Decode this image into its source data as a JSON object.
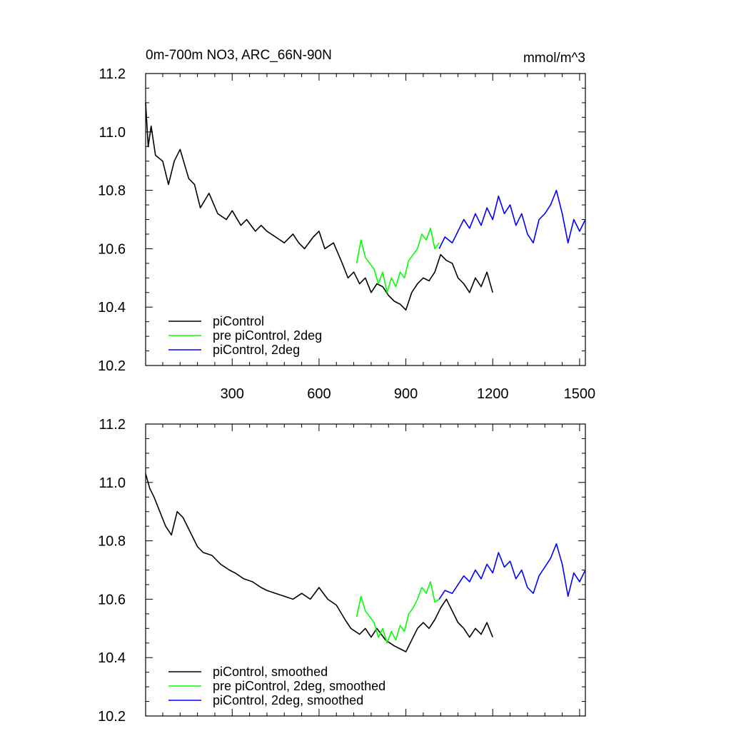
{
  "header": {
    "title": "0m-700m NO3, ARC_66N-90N",
    "units": "mmol/m^3"
  },
  "colors": {
    "piControl": "#000000",
    "pre_piControl_2deg": "#00ff00",
    "piControl_2deg": "#0000ff"
  },
  "chart_data": [
    {
      "type": "line",
      "panel": "top",
      "xlim": [
        1,
        1520
      ],
      "ylim": [
        10.2,
        11.2
      ],
      "x_ticks": [
        300,
        600,
        900,
        1200,
        1500
      ],
      "x_tick_labels": [
        "300",
        "600",
        "900",
        "1200",
        "1500"
      ],
      "y_ticks": [
        10.2,
        10.4,
        10.6,
        10.8,
        11.0,
        11.2
      ],
      "y_tick_labels": [
        "10.2",
        "10.4",
        "10.6",
        "10.8",
        "11.0",
        "11.2"
      ],
      "legend_position": "bottom-left",
      "series": [
        {
          "name": "piControl",
          "color_key": "piControl",
          "x": [
            1,
            10,
            20,
            35,
            60,
            80,
            100,
            120,
            150,
            170,
            190,
            220,
            250,
            280,
            300,
            330,
            350,
            380,
            400,
            420,
            450,
            480,
            510,
            530,
            550,
            580,
            600,
            620,
            650,
            680,
            700,
            720,
            740,
            760,
            780,
            800,
            820,
            840,
            860,
            880,
            900,
            920,
            940,
            960,
            980,
            1000,
            1020,
            1040,
            1060,
            1080,
            1100,
            1120,
            1140,
            1160,
            1180,
            1200
          ],
          "y": [
            11.1,
            10.95,
            11.02,
            10.92,
            10.9,
            10.82,
            10.9,
            10.94,
            10.84,
            10.82,
            10.74,
            10.79,
            10.72,
            10.7,
            10.73,
            10.68,
            10.7,
            10.66,
            10.68,
            10.66,
            10.64,
            10.62,
            10.65,
            10.62,
            10.6,
            10.64,
            10.66,
            10.6,
            10.62,
            10.55,
            10.5,
            10.52,
            10.48,
            10.5,
            10.45,
            10.48,
            10.47,
            10.44,
            10.42,
            10.41,
            10.39,
            10.45,
            10.48,
            10.5,
            10.49,
            10.52,
            10.58,
            10.56,
            10.55,
            10.5,
            10.48,
            10.45,
            10.5,
            10.47,
            10.52,
            10.45
          ]
        },
        {
          "name": "pre piControl, 2deg",
          "color_key": "pre_piControl_2deg",
          "x": [
            730,
            745,
            760,
            775,
            790,
            805,
            820,
            835,
            850,
            865,
            880,
            895,
            910,
            925,
            940,
            955,
            970,
            985,
            1000,
            1015
          ],
          "y": [
            10.55,
            10.63,
            10.57,
            10.55,
            10.53,
            10.48,
            10.52,
            10.45,
            10.5,
            10.47,
            10.52,
            10.5,
            10.56,
            10.58,
            10.6,
            10.65,
            10.63,
            10.67,
            10.6,
            10.62
          ]
        },
        {
          "name": "piControl, 2deg",
          "color_key": "piControl_2deg",
          "x": [
            1015,
            1035,
            1060,
            1080,
            1100,
            1120,
            1140,
            1160,
            1180,
            1200,
            1220,
            1240,
            1260,
            1280,
            1300,
            1320,
            1340,
            1360,
            1380,
            1400,
            1420,
            1440,
            1460,
            1480,
            1500,
            1520
          ],
          "y": [
            10.6,
            10.64,
            10.62,
            10.66,
            10.7,
            10.67,
            10.72,
            10.68,
            10.74,
            10.7,
            10.78,
            10.72,
            10.75,
            10.68,
            10.72,
            10.65,
            10.62,
            10.7,
            10.72,
            10.75,
            10.8,
            10.72,
            10.62,
            10.7,
            10.66,
            10.7
          ]
        }
      ]
    },
    {
      "type": "line",
      "panel": "bottom",
      "xlim": [
        1,
        1520
      ],
      "ylim": [
        10.2,
        11.2
      ],
      "x_ticks": [
        300,
        600,
        900,
        1200,
        1500
      ],
      "y_ticks": [
        10.2,
        10.4,
        10.6,
        10.8,
        11.0,
        11.2
      ],
      "y_tick_labels": [
        "10.2",
        "10.4",
        "10.6",
        "10.8",
        "11.0",
        "11.2"
      ],
      "legend_position": "bottom-left",
      "series": [
        {
          "name": "piControl, smoothed",
          "color_key": "piControl",
          "x": [
            1,
            15,
            30,
            50,
            70,
            90,
            110,
            130,
            160,
            180,
            200,
            230,
            260,
            290,
            310,
            340,
            370,
            400,
            420,
            450,
            480,
            510,
            540,
            570,
            600,
            630,
            660,
            690,
            710,
            740,
            760,
            780,
            800,
            830,
            860,
            880,
            900,
            920,
            940,
            960,
            980,
            1000,
            1020,
            1040,
            1060,
            1080,
            1100,
            1120,
            1140,
            1160,
            1180,
            1200
          ],
          "y": [
            11.03,
            10.98,
            10.95,
            10.9,
            10.85,
            10.82,
            10.9,
            10.88,
            10.82,
            10.78,
            10.76,
            10.75,
            10.72,
            10.7,
            10.69,
            10.67,
            10.66,
            10.64,
            10.63,
            10.62,
            10.61,
            10.6,
            10.62,
            10.6,
            10.64,
            10.6,
            10.58,
            10.53,
            10.5,
            10.48,
            10.5,
            10.47,
            10.5,
            10.46,
            10.44,
            10.43,
            10.42,
            10.46,
            10.5,
            10.52,
            10.5,
            10.53,
            10.57,
            10.6,
            10.56,
            10.52,
            10.5,
            10.47,
            10.5,
            10.48,
            10.52,
            10.47
          ]
        },
        {
          "name": "pre piControl, 2deg, smoothed",
          "color_key": "pre_piControl_2deg",
          "x": [
            730,
            745,
            760,
            775,
            790,
            805,
            820,
            835,
            850,
            865,
            880,
            895,
            910,
            925,
            940,
            955,
            970,
            985,
            1000,
            1015
          ],
          "y": [
            10.54,
            10.61,
            10.56,
            10.54,
            10.52,
            10.47,
            10.5,
            10.45,
            10.49,
            10.46,
            10.51,
            10.49,
            10.55,
            10.57,
            10.6,
            10.64,
            10.62,
            10.66,
            10.59,
            10.6
          ]
        },
        {
          "name": "piControl, 2deg, smoothed",
          "color_key": "piControl_2deg",
          "x": [
            1015,
            1035,
            1060,
            1080,
            1100,
            1120,
            1140,
            1160,
            1180,
            1200,
            1220,
            1240,
            1260,
            1280,
            1300,
            1320,
            1340,
            1360,
            1380,
            1400,
            1420,
            1440,
            1460,
            1480,
            1500,
            1520
          ],
          "y": [
            10.6,
            10.63,
            10.62,
            10.65,
            10.68,
            10.66,
            10.7,
            10.67,
            10.72,
            10.69,
            10.76,
            10.71,
            10.73,
            10.67,
            10.7,
            10.64,
            10.62,
            10.68,
            10.71,
            10.74,
            10.79,
            10.72,
            10.61,
            10.69,
            10.66,
            10.7
          ]
        }
      ]
    }
  ]
}
